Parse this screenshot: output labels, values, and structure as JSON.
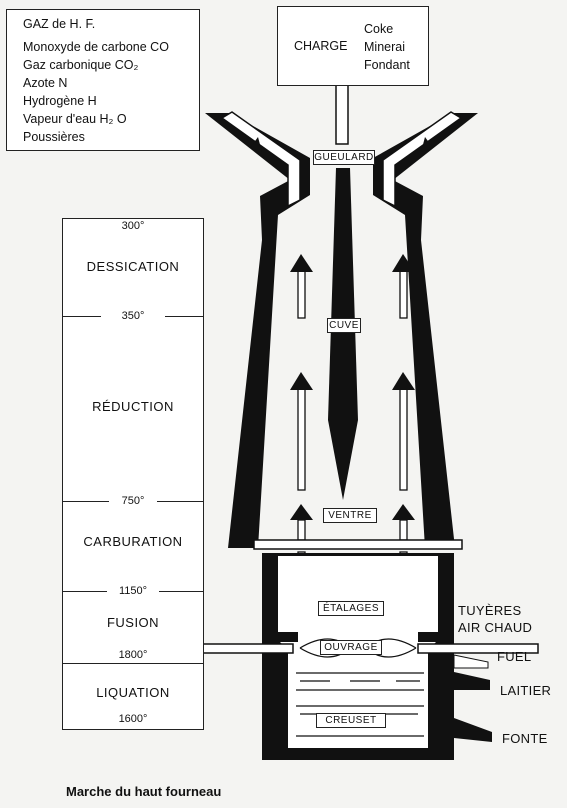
{
  "gas_box": {
    "title": "GAZ de H. F.",
    "lines": [
      "Monoxyde de carbone   CO",
      "Gaz carbonique  CO₂",
      "Azote  N",
      "Hydrogène  H",
      "Vapeur d'eau  H₂ O",
      "Poussières"
    ]
  },
  "charge_box": {
    "title": "CHARGE",
    "items": [
      "Coke",
      "Minerai",
      "Fondant"
    ]
  },
  "scale": {
    "zones": [
      "DESSICATION",
      "RÉDUCTION",
      "CARBURATION",
      "FUSION",
      "LIQUATION"
    ],
    "temps": [
      "300°",
      "350°",
      "750°",
      "1150°",
      "1800°",
      "1600°"
    ]
  },
  "furnace": {
    "labels": [
      "GUEULARD",
      "CUVE",
      "VENTRE",
      "ÉTALAGES",
      "OUVRAGE",
      "CREUSET"
    ]
  },
  "side_labels": {
    "tuyeres": "TUYÈRES",
    "air": "AIR CHAUD",
    "fuel": "FUEL",
    "laitier": "LAITIER",
    "fonte": "FONTE"
  },
  "caption": "Marche du haut fourneau"
}
